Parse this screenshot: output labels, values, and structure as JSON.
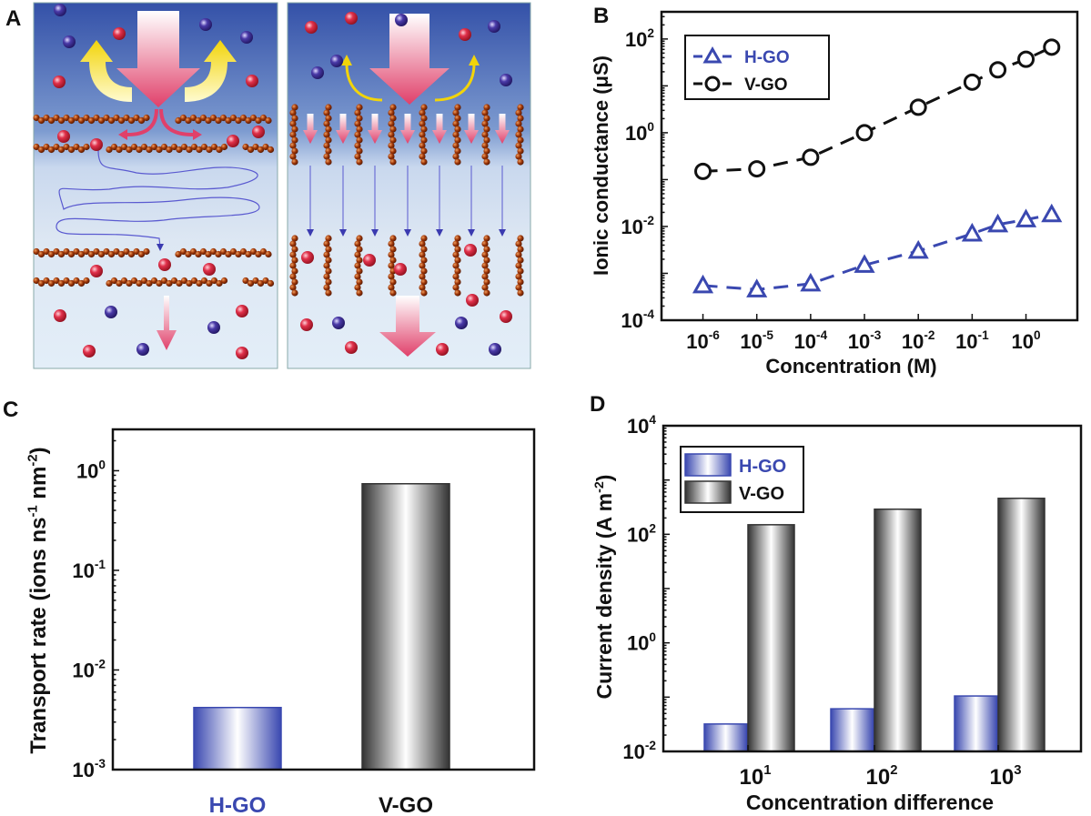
{
  "panel_labels": {
    "a": "A",
    "b": "B",
    "c": "C",
    "d": "D"
  },
  "colors": {
    "hgo": "#3a48b0",
    "vgo": "#111111",
    "ion_red": "#d8203a",
    "ion_purple": "#3a2f9a",
    "flow_arrow": "#e8506a",
    "yellow_arrow": "#f2d40a",
    "graphene": "#8a2e0a"
  },
  "chart_data": [
    {
      "panel": "B",
      "type": "line",
      "xscale": "log",
      "yscale": "log",
      "xlabel": "Concentration (M)",
      "ylabel": "Ionic conductance (μS)",
      "xlim": [
        1.7e-07,
        9
      ],
      "ylim": [
        0.0001,
        380
      ],
      "xticks": [
        {
          "v": 1e-06,
          "base": "10",
          "exp": "-6"
        },
        {
          "v": 1e-05,
          "base": "10",
          "exp": "-5"
        },
        {
          "v": 0.0001,
          "base": "10",
          "exp": "-4"
        },
        {
          "v": 0.001,
          "base": "10",
          "exp": "-3"
        },
        {
          "v": 0.01,
          "base": "10",
          "exp": "-2"
        },
        {
          "v": 0.1,
          "base": "10",
          "exp": "-1"
        },
        {
          "v": 1,
          "base": "10",
          "exp": "0"
        }
      ],
      "yticks": [
        {
          "v": 100.0,
          "base": "10",
          "exp": "2"
        },
        {
          "v": 1,
          "base": "10",
          "exp": "0"
        },
        {
          "v": 0.01,
          "base": "10",
          "exp": "-2"
        },
        {
          "v": 0.0001,
          "base": "10",
          "exp": "-4"
        }
      ],
      "legend_position": "top-left",
      "series": [
        {
          "name": "H-GO",
          "marker": "triangle",
          "color": "#3a48b0",
          "x": [
            1e-06,
            1e-05,
            0.0001,
            0.001,
            0.01,
            0.1,
            0.3,
            1,
            3
          ],
          "y": [
            0.00055,
            0.00045,
            0.0006,
            0.0015,
            0.003,
            0.007,
            0.011,
            0.014,
            0.018
          ]
        },
        {
          "name": "V-GO",
          "marker": "circle",
          "color": "#111111",
          "x": [
            1e-06,
            1e-05,
            0.0001,
            0.001,
            0.01,
            0.1,
            0.3,
            1,
            3
          ],
          "y": [
            0.15,
            0.17,
            0.3,
            1.0,
            3.5,
            12,
            22,
            37,
            67
          ]
        }
      ]
    },
    {
      "panel": "C",
      "type": "bar",
      "yscale": "log",
      "ylabel_parts": [
        {
          "t": "Transport rate (ions ns"
        },
        {
          "sup": "-1"
        },
        {
          "t": " nm"
        },
        {
          "sup": "-2"
        },
        {
          "t": ")"
        }
      ],
      "ylim": [
        0.001,
        2.6
      ],
      "yticks": [
        {
          "v": 1,
          "base": "10",
          "exp": "0"
        },
        {
          "v": 0.1,
          "base": "10",
          "exp": "-1"
        },
        {
          "v": 0.01,
          "base": "10",
          "exp": "-2"
        },
        {
          "v": 0.001,
          "base": "10",
          "exp": "-3"
        }
      ],
      "categories": [
        "H-GO",
        "V-GO"
      ],
      "values": [
        0.0042,
        0.74
      ]
    },
    {
      "panel": "D",
      "type": "bar",
      "yscale": "log",
      "xlabel": "Concentration difference",
      "ylabel_parts": [
        {
          "t": "Current density (A m"
        },
        {
          "sup": "-2"
        },
        {
          "t": ")"
        }
      ],
      "ylim": [
        0.01,
        10000
      ],
      "yticks": [
        {
          "v": 10000.0,
          "base": "10",
          "exp": "4"
        },
        {
          "v": 100.0,
          "base": "10",
          "exp": "2"
        },
        {
          "v": 1,
          "base": "10",
          "exp": "0"
        },
        {
          "v": 0.01,
          "base": "10",
          "exp": "-2"
        }
      ],
      "categories": [
        {
          "base": "10",
          "exp": "1"
        },
        {
          "base": "10",
          "exp": "2"
        },
        {
          "base": "10",
          "exp": "3"
        }
      ],
      "legend_position": "top-left",
      "series": [
        {
          "name": "H-GO",
          "values": [
            0.032,
            0.061,
            0.105
          ]
        },
        {
          "name": "V-GO",
          "values": [
            150,
            290,
            460
          ]
        }
      ]
    }
  ]
}
